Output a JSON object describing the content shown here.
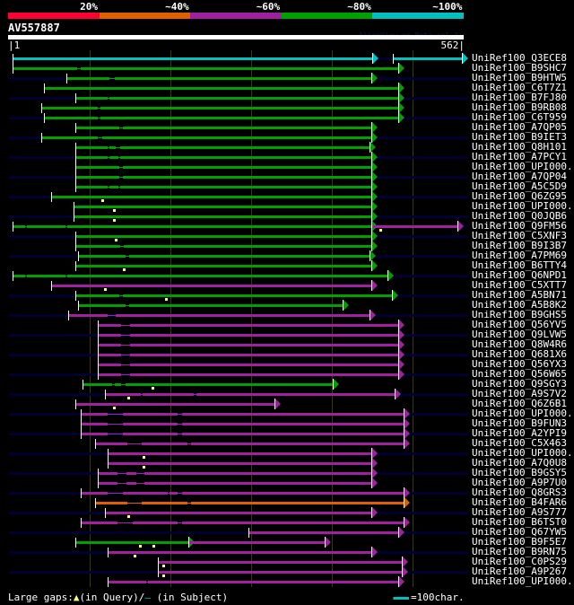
{
  "legend": {
    "labels": [
      "20%",
      "~40%",
      "~60%",
      "~80%",
      "~100%"
    ],
    "colors": [
      "#ff0033",
      "#e06000",
      "#a020a0",
      "#00a000",
      "#00c0c0"
    ]
  },
  "query": {
    "name": "AV557887",
    "start": "|1",
    "end": "562|",
    "length": 562
  },
  "version": "AlignView.pm Beta rel.7",
  "colors": {
    "g": "#00a000",
    "m": "#a020a0",
    "c": "#00c0c0",
    "o": "#e06000",
    "subject": "#000032",
    "marker": "#ffff80"
  },
  "rows": [
    {
      "label": "UniRef100_Q3ECE8",
      "subj": true,
      "segs": [
        {
          "c": "c",
          "s": 4,
          "e": 450,
          "gaps": []
        },
        {
          "c": "c",
          "s": 476,
          "e": 561,
          "gaps": []
        }
      ],
      "q": []
    },
    {
      "label": "UniRef100_B9SHC7",
      "subj": false,
      "segs": [
        {
          "c": "g",
          "s": 4,
          "e": 482,
          "gaps": [
            [
              84,
              89
            ]
          ]
        }
      ],
      "q": []
    },
    {
      "label": "UniRef100_B9HTW5",
      "subj": true,
      "segs": [
        {
          "c": "g",
          "s": 71,
          "e": 449,
          "gaps": [
            [
              124,
              131
            ]
          ]
        }
      ],
      "q": []
    },
    {
      "label": "UniRef100_C6T7Z1",
      "subj": false,
      "segs": [
        {
          "c": "g",
          "s": 43,
          "e": 482,
          "gaps": []
        }
      ],
      "q": []
    },
    {
      "label": "UniRef100_B7FJ80",
      "subj": true,
      "segs": [
        {
          "c": "g",
          "s": 82,
          "e": 482,
          "gaps": [
            [
              122,
              124
            ]
          ]
        }
      ],
      "q": []
    },
    {
      "label": "UniRef100_B9RB08",
      "subj": false,
      "segs": [
        {
          "c": "g",
          "s": 40,
          "e": 482,
          "gaps": [
            [
              110,
              113
            ]
          ]
        }
      ],
      "q": []
    },
    {
      "label": "UniRef100_C6T959",
      "subj": true,
      "segs": [
        {
          "c": "g",
          "s": 43,
          "e": 482,
          "gaps": [
            [
              110,
              113
            ]
          ]
        }
      ],
      "q": []
    },
    {
      "label": "UniRef100_A7QP05",
      "subj": false,
      "segs": [
        {
          "c": "g",
          "s": 82,
          "e": 449,
          "gaps": [
            [
              137,
              141
            ]
          ]
        }
      ],
      "q": []
    },
    {
      "label": "UniRef100_B9IET3",
      "subj": true,
      "segs": [
        {
          "c": "g",
          "s": 40,
          "e": 449,
          "gaps": [
            [
              110,
              116
            ]
          ]
        }
      ],
      "q": []
    },
    {
      "label": "UniRef100_Q8H101",
      "subj": false,
      "segs": [
        {
          "c": "g",
          "s": 82,
          "e": 447,
          "gaps": [
            [
              122,
              124
            ],
            [
              132,
              138
            ]
          ]
        }
      ],
      "q": []
    },
    {
      "label": "UniRef100_A7PCY1",
      "subj": true,
      "segs": [
        {
          "c": "g",
          "s": 82,
          "e": 449,
          "gaps": [
            [
              122,
              124
            ],
            [
              136,
              138
            ]
          ]
        }
      ],
      "q": []
    },
    {
      "label": "UniRef100_UPI000..",
      "subj": false,
      "segs": [
        {
          "c": "g",
          "s": 82,
          "e": 449,
          "gaps": [
            [
              137,
              141
            ]
          ]
        }
      ],
      "q": []
    },
    {
      "label": "UniRef100_A7QP04",
      "subj": true,
      "segs": [
        {
          "c": "g",
          "s": 82,
          "e": 449,
          "gaps": [
            [
              137,
              141
            ]
          ]
        }
      ],
      "q": []
    },
    {
      "label": "UniRef100_A5C5D9",
      "subj": false,
      "segs": [
        {
          "c": "g",
          "s": 82,
          "e": 449,
          "gaps": [
            [
              122,
              124
            ],
            [
              136,
              138
            ]
          ]
        }
      ],
      "q": []
    },
    {
      "label": "UniRef100_Q6ZG95",
      "subj": true,
      "segs": [
        {
          "c": "g",
          "s": 52,
          "e": 449,
          "gaps": []
        }
      ],
      "q": [
        116
      ]
    },
    {
      "label": "UniRef100_UPI000..",
      "subj": false,
      "segs": [
        {
          "c": "g",
          "s": 80,
          "e": 449,
          "gaps": []
        }
      ],
      "q": [
        130
      ]
    },
    {
      "label": "UniRef100_Q0JQB6",
      "subj": true,
      "segs": [
        {
          "c": "g",
          "s": 80,
          "e": 449,
          "gaps": []
        }
      ],
      "q": [
        130
      ]
    },
    {
      "label": "UniRef100_Q9FM56",
      "subj": true,
      "segs": [
        {
          "c": "g",
          "s": 4,
          "e": 449,
          "gaps": [
            [
              20,
              22
            ],
            [
              70,
              72
            ]
          ]
        },
        {
          "c": "m",
          "s": 450,
          "e": 556,
          "gaps": [],
          "nostart": true
        }
      ],
      "q": [
        460
      ]
    },
    {
      "label": "UniRef100_C5XNF3",
      "subj": true,
      "segs": [
        {
          "c": "g",
          "s": 82,
          "e": 449,
          "gaps": []
        }
      ],
      "q": [
        132
      ]
    },
    {
      "label": "UniRef100_B9I3B7",
      "subj": false,
      "segs": [
        {
          "c": "g",
          "s": 82,
          "e": 449,
          "gaps": [
            [
              138,
              142
            ]
          ]
        }
      ],
      "q": []
    },
    {
      "label": "UniRef100_A7PM69",
      "subj": true,
      "segs": [
        {
          "c": "g",
          "s": 86,
          "e": 447,
          "gaps": [
            [
              144,
              149
            ]
          ]
        }
      ],
      "q": []
    },
    {
      "label": "UniRef100_B6TTY4",
      "subj": false,
      "segs": [
        {
          "c": "g",
          "s": 82,
          "e": 449,
          "gaps": []
        }
      ],
      "q": [
        142
      ]
    },
    {
      "label": "UniRef100_Q6NPD1",
      "subj": true,
      "segs": [
        {
          "c": "g",
          "s": 4,
          "e": 469,
          "gaps": [
            [
              20,
              22
            ],
            [
              70,
              72
            ]
          ]
        }
      ],
      "q": []
    },
    {
      "label": "UniRef100_C5XTT7",
      "subj": false,
      "segs": [
        {
          "c": "m",
          "s": 52,
          "e": 449,
          "gaps": []
        }
      ],
      "q": [
        119
      ]
    },
    {
      "label": "UniRef100_A5BN71",
      "subj": true,
      "segs": [
        {
          "c": "g",
          "s": 82,
          "e": 474,
          "gaps": [
            [
              137,
              141
            ]
          ]
        }
      ],
      "q": [
        194
      ]
    },
    {
      "label": "UniRef100_A5B8K2",
      "subj": false,
      "segs": [
        {
          "c": "g",
          "s": 86,
          "e": 413,
          "gaps": [
            [
              144,
              149
            ]
          ]
        }
      ],
      "q": []
    },
    {
      "label": "UniRef100_B9GHS5",
      "subj": true,
      "segs": [
        {
          "c": "m",
          "s": 73,
          "e": 447,
          "gaps": [
            [
              122,
              132
            ]
          ]
        }
      ],
      "q": []
    },
    {
      "label": "UniRef100_Q56YV5",
      "subj": false,
      "segs": [
        {
          "c": "m",
          "s": 110,
          "e": 482,
          "gaps": [
            [
              139,
              150
            ]
          ]
        }
      ],
      "q": []
    },
    {
      "label": "UniRef100_Q9LVW5",
      "subj": true,
      "segs": [
        {
          "c": "m",
          "s": 110,
          "e": 482,
          "gaps": [
            [
              139,
              150
            ]
          ]
        }
      ],
      "q": []
    },
    {
      "label": "UniRef100_Q8W4R6",
      "subj": false,
      "segs": [
        {
          "c": "m",
          "s": 110,
          "e": 482,
          "gaps": [
            [
              139,
              150
            ]
          ]
        }
      ],
      "q": []
    },
    {
      "label": "UniRef100_Q681X6",
      "subj": true,
      "segs": [
        {
          "c": "m",
          "s": 110,
          "e": 482,
          "gaps": [
            [
              139,
              150
            ]
          ]
        }
      ],
      "q": []
    },
    {
      "label": "UniRef100_Q56YX3",
      "subj": false,
      "segs": [
        {
          "c": "m",
          "s": 110,
          "e": 482,
          "gaps": [
            [
              139,
              150
            ]
          ]
        }
      ],
      "q": []
    },
    {
      "label": "UniRef100_Q56W65",
      "subj": true,
      "segs": [
        {
          "c": "m",
          "s": 110,
          "e": 482,
          "gaps": [
            [
              139,
              150
            ]
          ]
        }
      ],
      "q": []
    },
    {
      "label": "UniRef100_Q9SGY3",
      "subj": false,
      "segs": [
        {
          "c": "g",
          "s": 91,
          "e": 401,
          "gaps": [
            [
              128,
              131
            ],
            [
              139,
              144
            ]
          ]
        }
      ],
      "q": [
        178
      ]
    },
    {
      "label": "UniRef100_A9S7V2",
      "subj": true,
      "segs": [
        {
          "c": "m",
          "s": 119,
          "e": 478,
          "gaps": [
            [
              163,
              166
            ],
            [
              229,
              232
            ]
          ]
        }
      ],
      "q": [
        148
      ]
    },
    {
      "label": "UniRef100_Q6Z6B1",
      "subj": false,
      "segs": [
        {
          "c": "m",
          "s": 82,
          "e": 329,
          "gaps": []
        }
      ],
      "q": [
        130
      ]
    },
    {
      "label": "UniRef100_UPI000..",
      "subj": true,
      "segs": [
        {
          "c": "m",
          "s": 89,
          "e": 489,
          "gaps": [
            [
              122,
              141
            ],
            [
              209,
              214
            ]
          ]
        }
      ],
      "q": []
    },
    {
      "label": "UniRef100_B9FUN3",
      "subj": false,
      "segs": [
        {
          "c": "m",
          "s": 89,
          "e": 489,
          "gaps": [
            [
              122,
              141
            ],
            [
              209,
              214
            ]
          ]
        }
      ],
      "q": []
    },
    {
      "label": "UniRef100_A2YPI9",
      "subj": true,
      "segs": [
        {
          "c": "m",
          "s": 89,
          "e": 489,
          "gaps": [
            [
              122,
              141
            ],
            [
              209,
              214
            ]
          ]
        }
      ],
      "q": []
    },
    {
      "label": "UniRef100_C5X463",
      "subj": false,
      "segs": [
        {
          "c": "m",
          "s": 107,
          "e": 489,
          "gaps": [
            [
              147,
              164
            ],
            [
              221,
              226
            ]
          ]
        }
      ],
      "q": []
    },
    {
      "label": "UniRef100_UPI000..",
      "subj": true,
      "segs": [
        {
          "c": "m",
          "s": 122,
          "e": 449,
          "gaps": []
        }
      ],
      "q": [
        167
      ]
    },
    {
      "label": "UniRef100_A7Q0U8",
      "subj": false,
      "segs": [
        {
          "c": "m",
          "s": 122,
          "e": 449,
          "gaps": []
        }
      ],
      "q": [
        167
      ]
    },
    {
      "label": "UniRef100_B9GSY5",
      "subj": true,
      "segs": [
        {
          "c": "m",
          "s": 110,
          "e": 449,
          "gaps": [
            [
              134,
              146
            ],
            [
              158,
              168
            ]
          ]
        }
      ],
      "q": []
    },
    {
      "label": "UniRef100_A9P7U0",
      "subj": false,
      "segs": [
        {
          "c": "m",
          "s": 110,
          "e": 449,
          "gaps": [
            [
              134,
              146
            ],
            [
              158,
              168
            ]
          ]
        }
      ],
      "q": []
    },
    {
      "label": "UniRef100_Q8GRS3",
      "subj": true,
      "segs": [
        {
          "c": "m",
          "s": 89,
          "e": 489,
          "gaps": [
            [
              122,
              141
            ],
            [
              197,
              199
            ],
            [
              209,
              214
            ]
          ]
        }
      ],
      "q": []
    },
    {
      "label": "UniRef100_B4FAR6",
      "subj": false,
      "segs": [
        {
          "c": "o",
          "s": 107,
          "e": 489,
          "gaps": [
            [
              147,
              164
            ],
            [
              221,
              226
            ]
          ]
        }
      ],
      "q": []
    },
    {
      "label": "UniRef100_A9S777",
      "subj": true,
      "segs": [
        {
          "c": "m",
          "s": 119,
          "e": 449,
          "gaps": []
        }
      ],
      "q": [
        148
      ]
    },
    {
      "label": "UniRef100_B6TST0",
      "subj": false,
      "segs": [
        {
          "c": "m",
          "s": 89,
          "e": 489,
          "gaps": [
            [
              134,
              153
            ],
            [
              209,
              214
            ]
          ]
        }
      ],
      "q": []
    },
    {
      "label": "UniRef100_Q67YW5",
      "subj": true,
      "segs": [
        {
          "c": "m",
          "s": 297,
          "e": 482,
          "gaps": []
        }
      ],
      "q": []
    },
    {
      "label": "UniRef100_B9F5E7",
      "subj": false,
      "segs": [
        {
          "c": "g",
          "s": 82,
          "e": 222,
          "gaps": []
        },
        {
          "c": "m",
          "s": 223,
          "e": 391,
          "gaps": [],
          "nostart": true
        }
      ],
      "q": [
        162,
        179
      ]
    },
    {
      "label": "UniRef100_B9RN75",
      "subj": true,
      "segs": [
        {
          "c": "m",
          "s": 122,
          "e": 449,
          "gaps": []
        }
      ],
      "q": [
        156
      ]
    },
    {
      "label": "UniRef100_C0PS29",
      "subj": false,
      "segs": [
        {
          "c": "m",
          "s": 184,
          "e": 487,
          "gaps": []
        }
      ],
      "q": [
        191
      ]
    },
    {
      "label": "UniRef100_A9P267",
      "subj": true,
      "segs": [
        {
          "c": "m",
          "s": 184,
          "e": 487,
          "gaps": []
        }
      ],
      "q": [
        191
      ]
    },
    {
      "label": "UniRef100_UPI000..",
      "subj": false,
      "segs": [
        {
          "c": "m",
          "s": 122,
          "e": 482,
          "gaps": [
            [
              170,
              172
            ]
          ]
        }
      ],
      "q": []
    }
  ],
  "footer": {
    "prefix": "Large gaps:",
    "tri": "▲",
    "query_text": "(in Query)/",
    "dash": "–",
    "subject_text": " (in Subject)",
    "scale_text": "=100char."
  }
}
